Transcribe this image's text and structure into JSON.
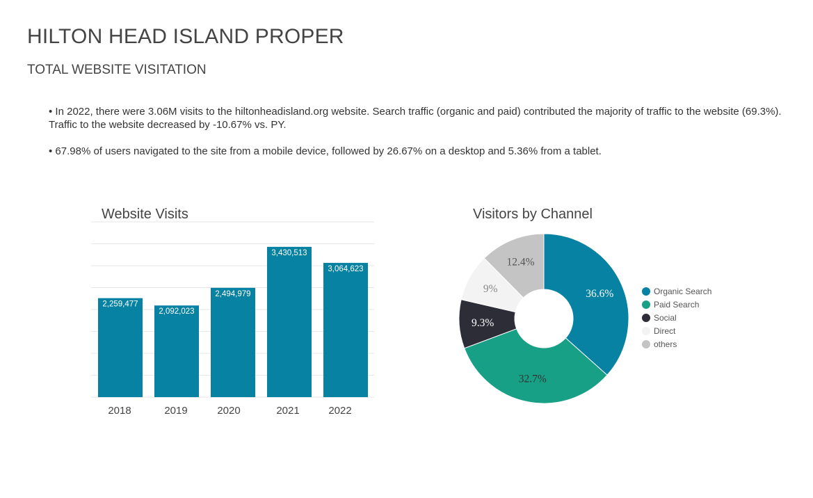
{
  "header": {
    "title": "HILTON HEAD ISLAND PROPER",
    "subtitle": "TOTAL WEBSITE VISITATION"
  },
  "bullets": [
    "• In 2022, there were 3.06M visits to the hiltonheadisland.org website. Search traffic (organic and paid) contributed the majority of traffic to the website (69.3%). Traffic to the website decreased by -10.67% vs. PY.",
    "• 67.98% of users navigated to the site from a mobile device, followed by 26.67% on a desktop and 5.36% from a tablet."
  ],
  "chart_data": [
    {
      "type": "bar",
      "title": "Website Visits",
      "categories": [
        "2018",
        "2019",
        "2020",
        "2021",
        "2022"
      ],
      "values": [
        2259477,
        2092023,
        2494979,
        3430513,
        3064623
      ],
      "value_labels": [
        "2,259,477",
        "2,092,023",
        "2,494,979",
        "3,430,513",
        "3,064,623"
      ],
      "ylim": [
        0,
        4000000
      ],
      "grid": true,
      "color": "#0882a3"
    },
    {
      "type": "pie",
      "style": "donut",
      "title": "Visitors by Channel",
      "legend_position": "right",
      "slices": [
        {
          "name": "Organic Search",
          "value": 36.6,
          "label": "36.6%",
          "color": "#0882a3",
          "label_color": "#ffffff"
        },
        {
          "name": "Paid Search",
          "value": 32.7,
          "label": "32.7%",
          "color": "#17a086",
          "label_color": "#333333"
        },
        {
          "name": "Social",
          "value": 9.3,
          "label": "9.3%",
          "color": "#2d2d38",
          "label_color": "#ffffff"
        },
        {
          "name": "Direct",
          "value": 9.0,
          "label": "9%",
          "color": "#f3f3f3",
          "label_color": "#888888"
        },
        {
          "name": "others",
          "value": 12.4,
          "label": "12.4%",
          "color": "#c4c4c4",
          "label_color": "#555555"
        }
      ]
    }
  ]
}
